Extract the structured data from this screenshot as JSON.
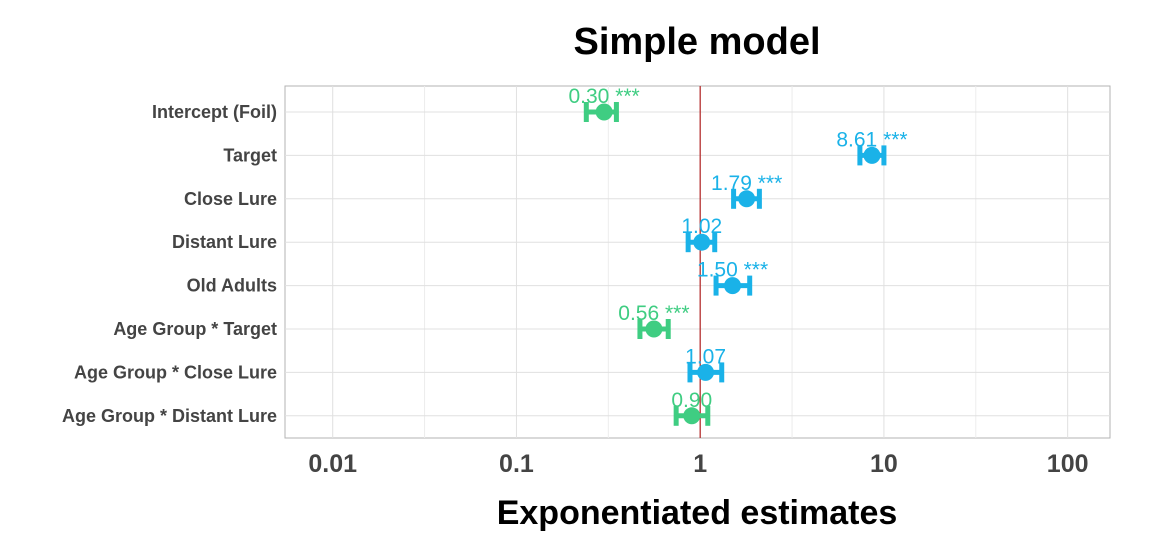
{
  "chart_data": {
    "type": "scatter",
    "title": "Simple model",
    "xlabel": "Exponentiated estimates",
    "ylabel": "",
    "x_scale": "log",
    "xlim": [
      0.0055,
      170
    ],
    "x_ticks": [
      0.01,
      0.1,
      1,
      10,
      100
    ],
    "x_tick_labels": [
      "0.01",
      "0.1",
      "1",
      "10",
      "100"
    ],
    "reference_line": {
      "x": 1,
      "color": "#b22222"
    },
    "grid": true,
    "colors": {
      "positive": "#1ab2e8",
      "negative": "#3fcd82",
      "panel_border": "#b3b3b3",
      "grid": "#e0e0e0"
    },
    "terms": [
      {
        "name": "Intercept (Foil)",
        "estimate": 0.3,
        "ci": [
          0.24,
          0.35
        ],
        "label": "0.30 ***",
        "direction": "negative"
      },
      {
        "name": "Target",
        "estimate": 8.61,
        "ci": [
          7.4,
          10.0
        ],
        "label": "8.61 ***",
        "direction": "positive"
      },
      {
        "name": "Close Lure",
        "estimate": 1.79,
        "ci": [
          1.52,
          2.1
        ],
        "label": "1.79 ***",
        "direction": "positive"
      },
      {
        "name": "Distant Lure",
        "estimate": 1.02,
        "ci": [
          0.86,
          1.2
        ],
        "label": "1.02",
        "direction": "positive"
      },
      {
        "name": "Old Adults",
        "estimate": 1.5,
        "ci": [
          1.22,
          1.86
        ],
        "label": "1.50 ***",
        "direction": "positive"
      },
      {
        "name": "Age Group * Target",
        "estimate": 0.56,
        "ci": [
          0.47,
          0.67
        ],
        "label": "0.56 ***",
        "direction": "negative"
      },
      {
        "name": "Age Group * Close Lure",
        "estimate": 1.07,
        "ci": [
          0.88,
          1.31
        ],
        "label": "1.07",
        "direction": "positive"
      },
      {
        "name": "Age Group * Distant Lure",
        "estimate": 0.9,
        "ci": [
          0.74,
          1.1
        ],
        "label": "0.90",
        "direction": "negative"
      }
    ]
  }
}
